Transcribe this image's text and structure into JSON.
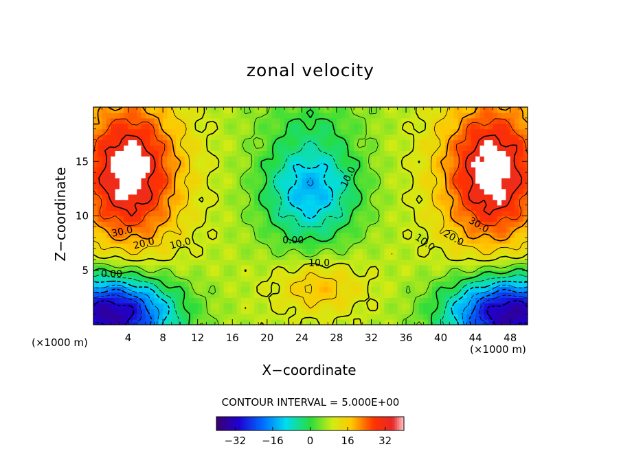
{
  "chart_data": {
    "type": "heatmap",
    "title": "zonal velocity",
    "xlabel": "X−coordinate",
    "ylabel": "Z−coordinate",
    "x_unit_label": "(×1000 m)",
    "xlim": [
      0,
      50
    ],
    "ylim": [
      0,
      20
    ],
    "x_ticks": [
      4,
      8,
      12,
      16,
      20,
      24,
      28,
      32,
      36,
      40,
      44,
      48
    ],
    "x_tick_labels": [
      "4",
      "8",
      "12",
      "16",
      "20",
      "24",
      "28",
      "32",
      "36",
      "40",
      "44",
      "48"
    ],
    "y_ticks": [
      5,
      10,
      15
    ],
    "y_tick_labels": [
      "5",
      "10",
      "15"
    ],
    "contour_interval_text": "CONTOUR INTERVAL = 5.000E+00",
    "contour_labels": [
      {
        "text": "30.0",
        "x": 3.3,
        "z": 8.6,
        "angle": -12
      },
      {
        "text": "20.0",
        "x": 5.8,
        "z": 7.5,
        "angle": -14
      },
      {
        "text": "10.0",
        "x": 10.0,
        "z": 7.5,
        "angle": -14
      },
      {
        "text": "0.00",
        "x": 2.1,
        "z": 4.7,
        "angle": 0
      },
      {
        "text": "0.00",
        "x": 23.0,
        "z": 7.8,
        "angle": 0
      },
      {
        "text": "10.0",
        "x": 26.0,
        "z": 5.7,
        "angle": 0
      },
      {
        "text": "10.0",
        "x": 29.3,
        "z": 13.6,
        "angle": -65
      },
      {
        "text": "10.0",
        "x": 38.2,
        "z": 7.6,
        "angle": 35
      },
      {
        "text": "20.0",
        "x": 41.5,
        "z": 8.0,
        "angle": 30
      },
      {
        "text": "30.0",
        "x": 44.4,
        "z": 9.2,
        "angle": 30
      }
    ],
    "field_features": [
      {
        "kind": "max",
        "x": 4,
        "z": 14,
        "value": 35
      },
      {
        "kind": "max",
        "x": 46,
        "z": 14,
        "value": 35
      },
      {
        "kind": "min",
        "x": 1.5,
        "z": 1.0,
        "value": -35
      },
      {
        "kind": "min",
        "x": 48.5,
        "z": 1.0,
        "value": -35
      },
      {
        "kind": "min",
        "x": 25,
        "z": 12.5,
        "value": -14
      },
      {
        "kind": "max",
        "x": 26,
        "z": 3.5,
        "value": 17
      }
    ],
    "colorbar": {
      "min": -40,
      "max": 40,
      "ticks": [
        -32,
        -16,
        0,
        16,
        32
      ],
      "tick_labels": [
        "−32",
        "−16",
        "0",
        "16",
        "32"
      ]
    },
    "legend": "none",
    "grid": false
  }
}
